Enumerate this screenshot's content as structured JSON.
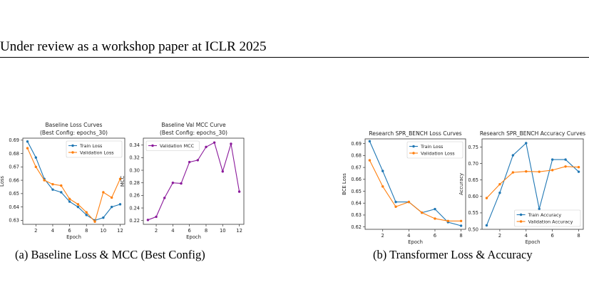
{
  "header": {
    "text": "Under review as a workshop paper at ICLR 2025"
  },
  "captions": [
    "(a) Baseline Loss & MCC (Best Config)",
    "(b) Transformer Loss & Accuracy"
  ],
  "colors": {
    "blue": "#1f77b4",
    "orange": "#ff7f0e",
    "purple": "#8b1a9b"
  },
  "chart_data": [
    {
      "type": "line",
      "title": "Baseline Loss Curves",
      "subtitle": "(Best Config: epochs_30)",
      "xlabel": "Epoch",
      "ylabel": "Loss",
      "xlim": [
        0.45,
        12.55
      ],
      "ylim": [
        0.627,
        0.6915
      ],
      "xticks": [
        2,
        4,
        6,
        8,
        10,
        12
      ],
      "yticks": [
        0.63,
        0.64,
        0.65,
        0.66,
        0.67,
        0.68,
        0.69
      ],
      "ytick_labels": [
        "0.63",
        "0.64",
        "0.65",
        "0.66",
        "0.67",
        "0.68",
        "0.69"
      ],
      "legend": "top-right",
      "x": [
        1,
        2,
        3,
        4,
        5,
        6,
        7,
        8,
        9,
        10,
        11,
        12
      ],
      "series": [
        {
          "name": "Train Loss",
          "color": "#1f77b4",
          "values": [
            0.689,
            0.677,
            0.661,
            0.653,
            0.651,
            0.644,
            0.64,
            0.634,
            0.63,
            0.632,
            0.64,
            0.642
          ]
        },
        {
          "name": "Validation Loss",
          "color": "#ff7f0e",
          "values": [
            0.684,
            0.67,
            0.66,
            0.657,
            0.656,
            0.646,
            0.642,
            0.636,
            0.629,
            0.651,
            0.647,
            0.661
          ]
        }
      ]
    },
    {
      "type": "line",
      "title": "Baseline Val MCC Curve",
      "subtitle": "(Best Config: epochs_30)",
      "xlabel": "Epoch",
      "ylabel": "MCC",
      "xlim": [
        0.45,
        12.55
      ],
      "ylim": [
        0.214,
        0.351
      ],
      "xticks": [
        2,
        4,
        6,
        8,
        10,
        12
      ],
      "yticks": [
        0.22,
        0.24,
        0.26,
        0.28,
        0.3,
        0.32,
        0.34
      ],
      "ytick_labels": [
        "0.22",
        "0.24",
        "0.26",
        "0.28",
        "0.30",
        "0.32",
        "0.34"
      ],
      "legend": "top-left",
      "x": [
        1,
        2,
        3,
        4,
        5,
        6,
        7,
        8,
        9,
        10,
        11,
        12
      ],
      "series": [
        {
          "name": "Validation MCC",
          "color": "#8b1a9b",
          "values": [
            0.221,
            0.226,
            0.256,
            0.28,
            0.279,
            0.313,
            0.316,
            0.337,
            0.344,
            0.298,
            0.342,
            0.266
          ]
        }
      ]
    },
    {
      "type": "line",
      "title": "Research SPR_BENCH Loss Curves",
      "subtitle": "",
      "xlabel": "Epoch",
      "ylabel": "BCE Loss",
      "xlim": [
        0.65,
        8.35
      ],
      "ylim": [
        0.618,
        0.694
      ],
      "xticks": [
        2,
        4,
        6,
        8
      ],
      "yticks": [
        0.62,
        0.63,
        0.64,
        0.65,
        0.66,
        0.67,
        0.68,
        0.69
      ],
      "ytick_labels": [
        "0.62",
        "0.63",
        "0.64",
        "0.65",
        "0.66",
        "0.67",
        "0.68",
        "0.69"
      ],
      "legend": "top-right",
      "x": [
        1,
        2,
        3,
        4,
        5,
        6,
        7,
        8
      ],
      "series": [
        {
          "name": "Train Loss",
          "color": "#1f77b4",
          "values": [
            0.692,
            0.667,
            0.641,
            0.641,
            0.632,
            0.635,
            0.624,
            0.621
          ]
        },
        {
          "name": "Validation Loss",
          "color": "#ff7f0e",
          "values": [
            0.676,
            0.654,
            0.637,
            0.641,
            0.632,
            0.627,
            0.625,
            0.625
          ]
        }
      ]
    },
    {
      "type": "line",
      "title": "Research SPR_BENCH Accuracy Curves",
      "subtitle": "",
      "xlabel": "Epoch",
      "ylabel": "Accuracy",
      "xlim": [
        0.65,
        8.35
      ],
      "ylim": [
        0.5,
        0.775
      ],
      "xticks": [
        2,
        4,
        6,
        8
      ],
      "yticks": [
        0.5,
        0.55,
        0.6,
        0.65,
        0.7,
        0.75
      ],
      "ytick_labels": [
        "0.50",
        "0.55",
        "0.60",
        "0.65",
        "0.70",
        "0.75"
      ],
      "legend": "bottom-right",
      "x": [
        1,
        2,
        3,
        4,
        5,
        6,
        7,
        8
      ],
      "series": [
        {
          "name": "Train Accuracy",
          "color": "#1f77b4",
          "values": [
            0.512,
            0.611,
            0.725,
            0.762,
            0.562,
            0.712,
            0.712,
            0.675
          ]
        },
        {
          "name": "Validation Accuracy",
          "color": "#ff7f0e",
          "values": [
            0.595,
            0.637,
            0.673,
            0.676,
            0.675,
            0.68,
            0.691,
            0.689
          ]
        }
      ]
    }
  ]
}
